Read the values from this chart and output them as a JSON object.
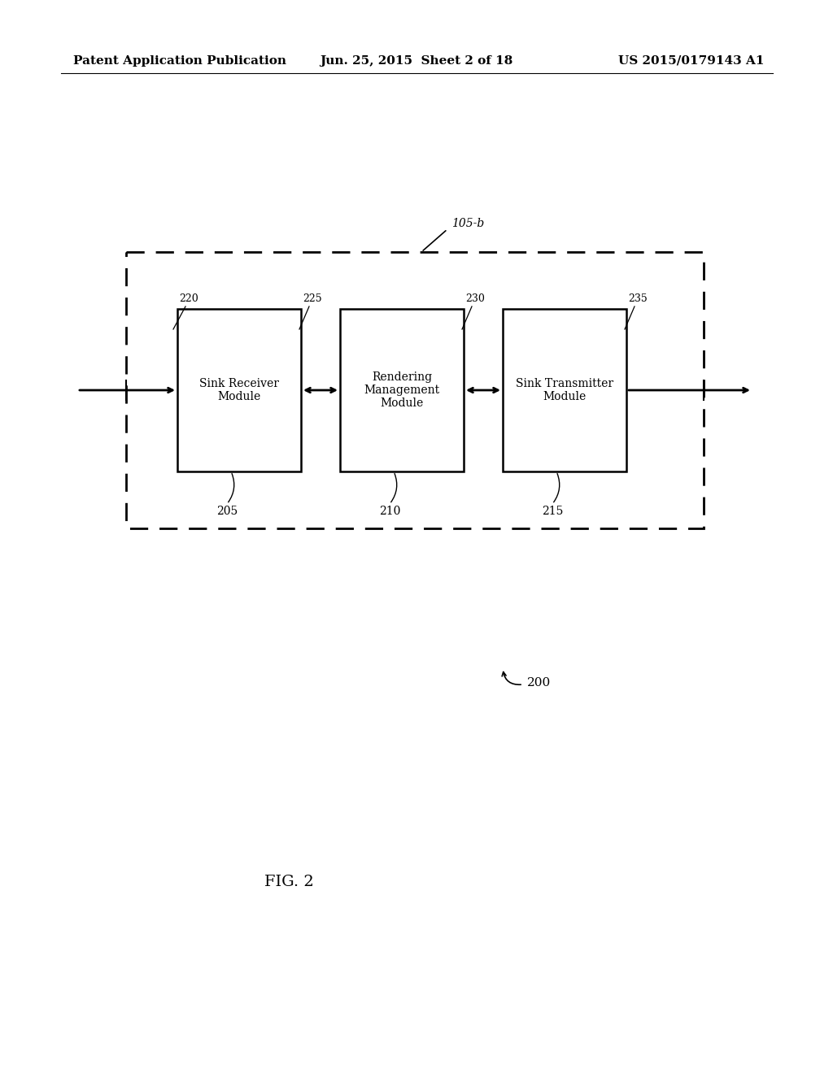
{
  "bg_color": "#ffffff",
  "header_left": "Patent Application Publication",
  "header_center": "Jun. 25, 2015  Sheet 2 of 18",
  "header_right": "US 2015/0179143 A1",
  "fig_label": "FIG. 2",
  "outer_box_label": "105-b",
  "ref_200": "200",
  "boxes": [
    {
      "label": "Sink Receiver\nModule",
      "ref": "205",
      "port_l": "220",
      "port_r": "225"
    },
    {
      "label": "Rendering\nManagement\nModule",
      "ref": "210",
      "port_l": "",
      "port_r": "230"
    },
    {
      "label": "Sink Transmitter\nModule",
      "ref": "215",
      "port_l": "",
      "port_r": "235"
    }
  ]
}
